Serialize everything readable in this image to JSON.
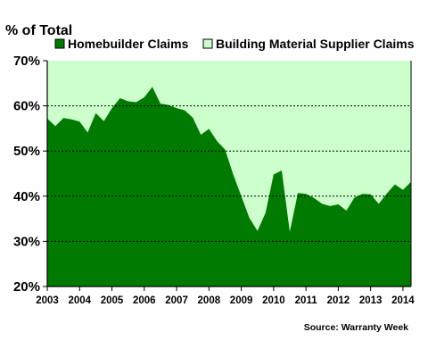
{
  "chart_data": {
    "type": "area",
    "stacked": true,
    "ylabel": "% of Total",
    "ylim": [
      20,
      70
    ],
    "y_ticks": [
      "20%",
      "30%",
      "40%",
      "50%",
      "60%",
      "70%"
    ],
    "x_range": [
      2003.0,
      2014.25
    ],
    "x_ticks": [
      "2003",
      "2004",
      "2005",
      "2006",
      "2007",
      "2008",
      "2009",
      "2010",
      "2011",
      "2012",
      "2013",
      "2014"
    ],
    "legend_position": "top",
    "series": [
      {
        "name": "Homebuilder Claims",
        "color": "#007a00",
        "x": [
          2003.0,
          2003.25,
          2003.5,
          2003.75,
          2004.0,
          2004.25,
          2004.5,
          2004.75,
          2005.0,
          2005.25,
          2005.5,
          2005.75,
          2006.0,
          2006.25,
          2006.5,
          2006.75,
          2007.0,
          2007.25,
          2007.5,
          2007.75,
          2008.0,
          2008.25,
          2008.5,
          2008.75,
          2009.0,
          2009.25,
          2009.5,
          2009.75,
          2010.0,
          2010.25,
          2010.5,
          2010.75,
          2011.0,
          2011.25,
          2011.5,
          2011.75,
          2012.0,
          2012.25,
          2012.5,
          2012.75,
          2013.0,
          2013.25,
          2013.5,
          2013.75,
          2014.0,
          2014.25
        ],
        "values": [
          57.2,
          55.5,
          57.3,
          57.0,
          56.5,
          54.1,
          58.4,
          56.6,
          59.5,
          61.7,
          61.0,
          60.8,
          61.9,
          64.2,
          60.5,
          60.2,
          59.5,
          59.0,
          57.4,
          53.6,
          54.9,
          52.2,
          50.3,
          44.8,
          40.0,
          35.2,
          32.3,
          36.3,
          44.8,
          45.7,
          32.1,
          40.7,
          40.5,
          39.6,
          38.3,
          37.8,
          38.2,
          36.8,
          39.7,
          40.5,
          40.4,
          38.3,
          40.6,
          42.6,
          41.4,
          43.2
        ]
      },
      {
        "name": "Building Material Supplier Claims",
        "color": "#ccffcc",
        "note_complement": true
      }
    ],
    "source": "Source: Warranty Week"
  }
}
